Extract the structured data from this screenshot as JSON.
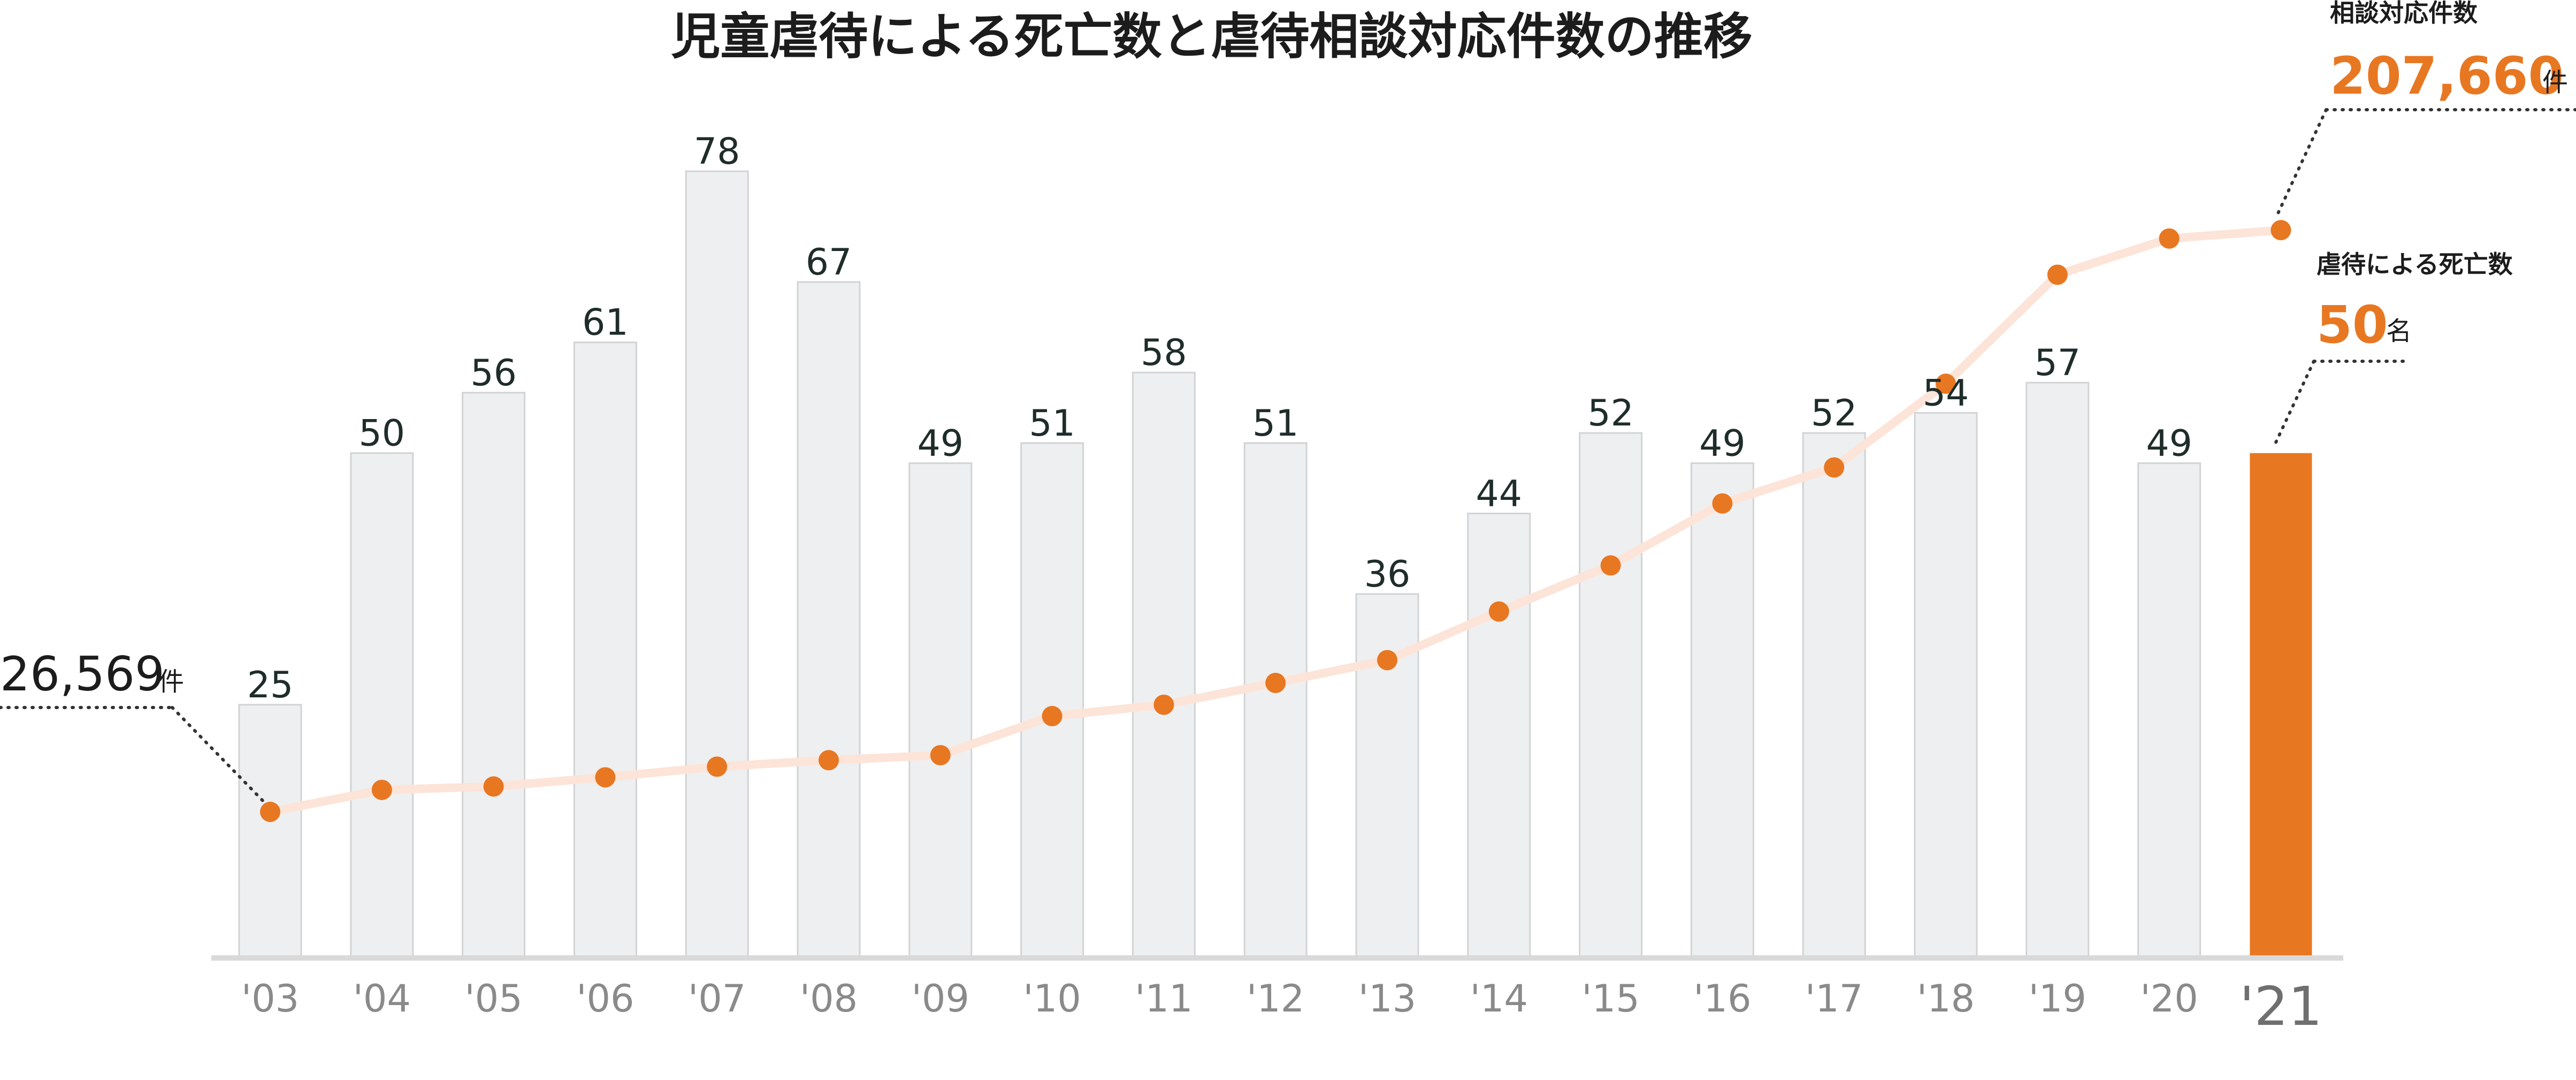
{
  "chart_data": {
    "type": "bar",
    "title": "児童虐待による死亡数と虐待相談対応件数の推移",
    "categories": [
      "'03",
      "'04",
      "'05",
      "'06",
      "'07",
      "'08",
      "'09",
      "'10",
      "'11",
      "'12",
      "'13",
      "'14",
      "'15",
      "'16",
      "'17",
      "'18",
      "'19",
      "'20",
      "'21"
    ],
    "series": [
      {
        "name": "虐待による死亡数",
        "type": "bar",
        "values": [
          25,
          50,
          56,
          61,
          78,
          67,
          49,
          51,
          58,
          51,
          36,
          44,
          52,
          49,
          52,
          54,
          57,
          49,
          50
        ],
        "color": "#eeeff0",
        "highlight_color": "#e87722"
      },
      {
        "name": "相談対応件数",
        "type": "line",
        "values": [
          26569,
          33408,
          34472,
          37323,
          40639,
          42664,
          44211,
          56384,
          59919,
          66701,
          73802,
          88931,
          103286,
          122575,
          133778,
          159838,
          193780,
          205044,
          207660
        ],
        "line_color": "#fde4d8",
        "marker_color": "#e87722"
      }
    ],
    "ylim_bar": [
      0,
      78
    ],
    "ylim_line": [
      0,
      210000
    ],
    "grid": false,
    "annotations": {
      "line_start": {
        "value": "26,569",
        "unit": "件"
      },
      "line_end": {
        "label": "相談対応件数",
        "value": "207,660",
        "unit": "件"
      },
      "bar_end": {
        "label": "虐待による死亡数",
        "value": "50",
        "unit": "名"
      }
    },
    "colors": {
      "accent": "#e87722",
      "text": "#1f2d2a",
      "axis": "#d9d9d9"
    }
  }
}
